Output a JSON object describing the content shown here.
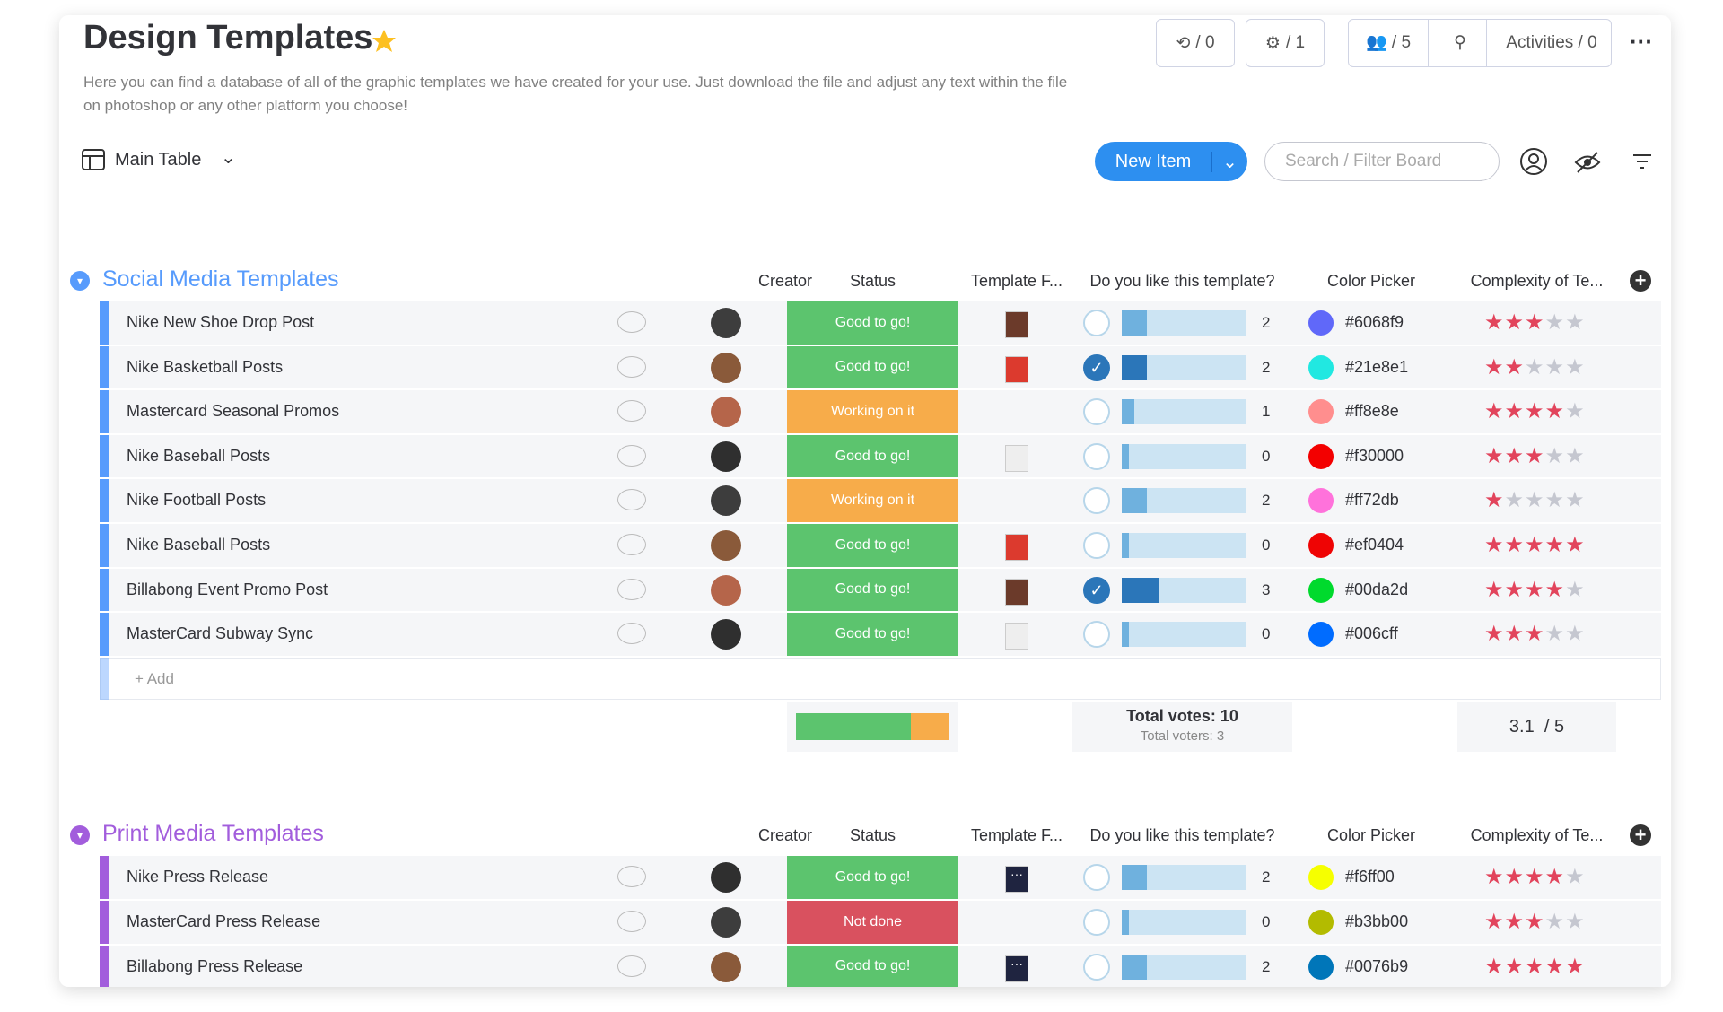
{
  "header": {
    "title": "Design Templates",
    "description": "Here you can find a database of all of the graphic templates we have created for your use. Just download the file and adjust any text within the file on photoshop or any other platform you choose!",
    "counters": [
      "/ 0",
      "/ 1",
      "/ 5"
    ],
    "activities": "Activities / 0"
  },
  "toolbar": {
    "view": "Main Table",
    "new_item": "New Item",
    "search": "Search / Filter Board"
  },
  "columns": [
    "Creator",
    "Status",
    "Template F...",
    "Do you like this template?",
    "Color Picker",
    "Complexity of Te..."
  ],
  "groups": [
    {
      "name": "Social Media Templates",
      "color": "#579bfc",
      "rows": [
        {
          "name": "Nike New Shoe Drop Post",
          "status": "Good to go!",
          "voted": false,
          "votes": 2,
          "color": "#6068f9",
          "stars": 3
        },
        {
          "name": "Nike Basketball Posts",
          "status": "Good to go!",
          "voted": true,
          "votes": 2,
          "color": "#21e8e1",
          "stars": 2
        },
        {
          "name": "Mastercard Seasonal Promos",
          "status": "Working on it",
          "voted": false,
          "votes": 1,
          "color": "#ff8e8e",
          "stars": 4
        },
        {
          "name": "Nike Baseball Posts",
          "status": "Good to go!",
          "voted": false,
          "votes": 0,
          "color": "#f30000",
          "stars": 3
        },
        {
          "name": "Nike Football Posts",
          "status": "Working on it",
          "voted": false,
          "votes": 2,
          "color": "#ff72db",
          "stars": 1
        },
        {
          "name": "Nike Baseball Posts",
          "status": "Good to go!",
          "voted": false,
          "votes": 0,
          "color": "#ef0404",
          "stars": 5
        },
        {
          "name": "Billabong Event Promo Post",
          "status": "Good to go!",
          "voted": true,
          "votes": 3,
          "color": "#00da2d",
          "stars": 4
        },
        {
          "name": "MasterCard Subway Sync",
          "status": "Good to go!",
          "voted": false,
          "votes": 0,
          "color": "#006cff",
          "stars": 3
        }
      ],
      "add": "+ Add",
      "total_votes": "Total votes: 10",
      "total_voters": "Total voters: 3",
      "total_votes_value": 10,
      "rating": "3.1  / 5",
      "max_stars": 5
    },
    {
      "name": "Print Media Templates",
      "color": "#a25ddc",
      "rows": [
        {
          "name": "Nike Press Release",
          "status": "Good to go!",
          "voted": false,
          "votes": 2,
          "color": "#f6ff00",
          "stars": 4
        },
        {
          "name": "MasterCard Press Release",
          "status": "Not done",
          "voted": false,
          "votes": 0,
          "color": "#b3bb00",
          "stars": 3
        },
        {
          "name": "Billabong Press Release",
          "status": "Good to go!",
          "voted": false,
          "votes": 2,
          "color": "#0076b9",
          "stars": 5
        }
      ],
      "max_stars": 5
    }
  ],
  "status_colors": {
    "Good to go!": "#5cc46e",
    "Working on it": "#f7ac4a",
    "Not done": "#d9515f"
  }
}
